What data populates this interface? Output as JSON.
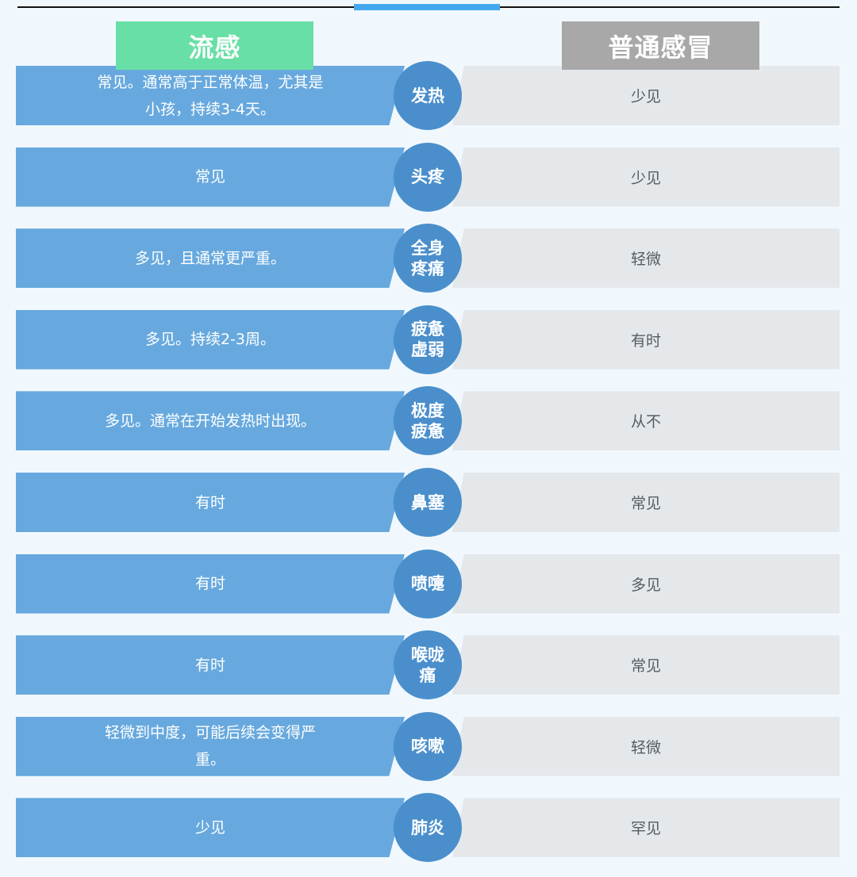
{
  "header": {
    "flu": "流感",
    "cold": "普通感冒"
  },
  "colors": {
    "flu_header": "#68dfa6",
    "cold_header": "#a8a8a8",
    "flu_bar": "#67a9de",
    "symptom_circle": "#4a8fcc",
    "cold_bar": "#e5e8eb",
    "accent": "#45a8ee"
  },
  "rows": [
    {
      "symptom": "发热",
      "flu": "常见。通常高于正常体温，尤其是小孩，持续3-4天。",
      "cold": "少见"
    },
    {
      "symptom": "头疼",
      "flu": "常见",
      "cold": "少见"
    },
    {
      "symptom": "全身疼痛",
      "flu": "多见，且通常更严重。",
      "cold": "轻微"
    },
    {
      "symptom": "疲惫虚弱",
      "flu": "多见。持续2-3周。",
      "cold": "有时"
    },
    {
      "symptom": "极度疲惫",
      "flu": "多见。通常在开始发热时出现。",
      "cold": "从不"
    },
    {
      "symptom": "鼻塞",
      "flu": "有时",
      "cold": "常见"
    },
    {
      "symptom": "喷嚏",
      "flu": "有时",
      "cold": "多见"
    },
    {
      "symptom": "喉咙痛",
      "flu": "有时",
      "cold": "常见"
    },
    {
      "symptom": "咳嗽",
      "flu": "轻微到中度，可能后续会变得严重。",
      "cold": "轻微"
    },
    {
      "symptom": "肺炎",
      "flu": "少见",
      "cold": "罕见"
    }
  ]
}
